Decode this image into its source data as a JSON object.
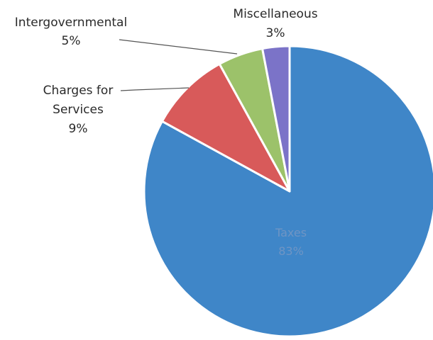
{
  "chart_data": {
    "type": "pie",
    "title": "",
    "slices": [
      {
        "label": "Taxes",
        "pct_label": "83%",
        "value": 83,
        "color": "#3f86c8"
      },
      {
        "label": "Charges for Services",
        "label_lines": [
          "Charges for",
          "Services"
        ],
        "pct_label": "9%",
        "value": 9,
        "color": "#d85a5a"
      },
      {
        "label": "Intergovernmental",
        "pct_label": "5%",
        "value": 5,
        "color": "#9cc26a"
      },
      {
        "label": "Miscellaneous",
        "pct_label": "3%",
        "value": 3,
        "color": "#7b73c8"
      }
    ],
    "start_angle_deg": 0,
    "direction": "clockwise",
    "legend": "none",
    "label_placement": {
      "Taxes": "inside",
      "Charges for Services": "outside-left",
      "Intergovernmental": "outside-top-left",
      "Miscellaneous": "outside-top"
    }
  }
}
